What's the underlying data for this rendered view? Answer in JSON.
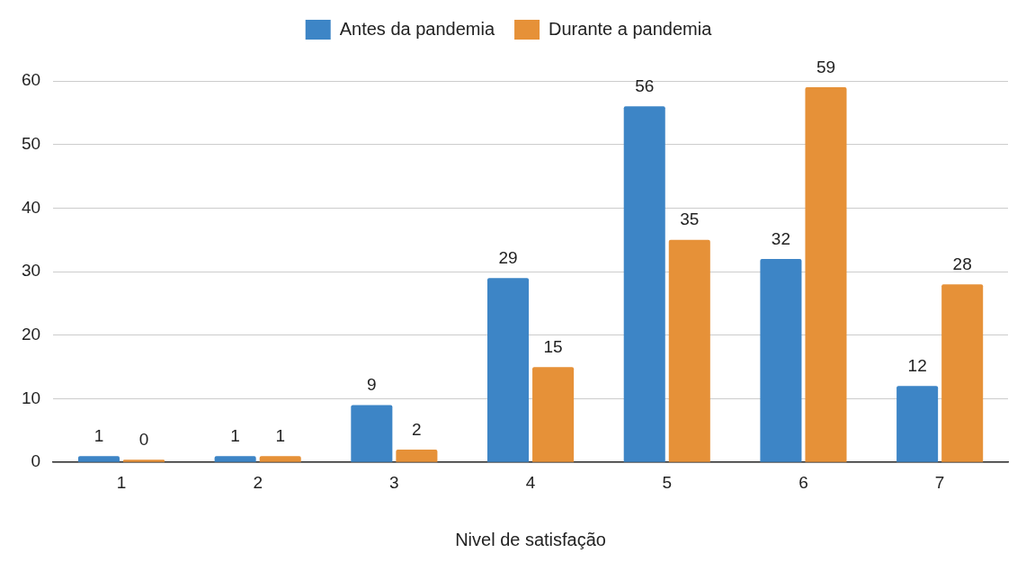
{
  "chart_data": {
    "type": "bar",
    "xlabel": "Nivel de satisfação",
    "categories": [
      "1",
      "2",
      "3",
      "4",
      "5",
      "6",
      "7"
    ],
    "series": [
      {
        "name": "Antes da pandemia",
        "color": "#3d85c6",
        "values": [
          1,
          1,
          9,
          29,
          56,
          32,
          12
        ]
      },
      {
        "name": "Durante a pandemia",
        "color": "#e69138",
        "values": [
          0,
          1,
          2,
          15,
          35,
          59,
          28
        ]
      }
    ],
    "ylim": [
      0,
      60
    ],
    "yticks": [
      0,
      10,
      20,
      30,
      40,
      50,
      60
    ],
    "grid": "y",
    "legend": "top",
    "data_labels": true
  }
}
